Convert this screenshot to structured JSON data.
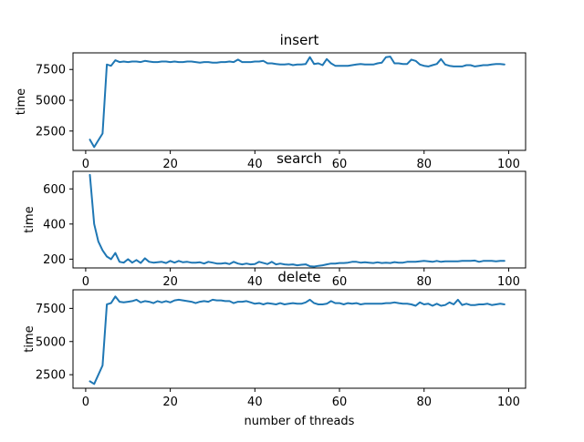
{
  "chart_data": [
    {
      "type": "line",
      "title": "insert",
      "xlabel": "",
      "ylabel": "time",
      "xlim": [
        -3,
        104
      ],
      "ylim": [
        930,
        8850
      ],
      "xticks": [
        0,
        20,
        40,
        60,
        80,
        100
      ],
      "xtick_labels": [
        "0",
        "20",
        "40",
        "60",
        "80",
        "100"
      ],
      "yticks": [
        2500,
        5000,
        7500
      ],
      "ytick_labels": [
        "2500",
        "5000",
        "7500"
      ],
      "grid": false,
      "series": [
        {
          "name": "insert",
          "color": "#1f77b4",
          "x": [
            1,
            2,
            3,
            4,
            5,
            6,
            7,
            8,
            9,
            10,
            11,
            12,
            13,
            14,
            15,
            16,
            17,
            18,
            19,
            20,
            21,
            22,
            23,
            24,
            25,
            26,
            27,
            28,
            29,
            30,
            31,
            32,
            33,
            34,
            35,
            36,
            37,
            38,
            39,
            40,
            41,
            42,
            43,
            44,
            45,
            46,
            47,
            48,
            49,
            50,
            51,
            52,
            53,
            54,
            55,
            56,
            57,
            58,
            59,
            60,
            61,
            62,
            63,
            64,
            65,
            66,
            67,
            68,
            69,
            70,
            71,
            72,
            73,
            74,
            75,
            76,
            77,
            78,
            79,
            80,
            81,
            82,
            83,
            84,
            85,
            86,
            87,
            88,
            89,
            90,
            91,
            92,
            93,
            94,
            95,
            96,
            97,
            98,
            99
          ],
          "values": [
            1800,
            1200,
            1750,
            2300,
            7900,
            7800,
            8250,
            8100,
            8150,
            8100,
            8150,
            8150,
            8100,
            8200,
            8150,
            8100,
            8100,
            8150,
            8150,
            8100,
            8150,
            8100,
            8100,
            8150,
            8150,
            8100,
            8050,
            8100,
            8100,
            8050,
            8050,
            8100,
            8100,
            8150,
            8100,
            8300,
            8100,
            8100,
            8100,
            8150,
            8150,
            8200,
            8000,
            8000,
            7950,
            7900,
            7900,
            7950,
            7850,
            7900,
            7900,
            7950,
            8500,
            7950,
            8000,
            7850,
            8350,
            8000,
            7800,
            7800,
            7800,
            7800,
            7850,
            7900,
            7950,
            7900,
            7900,
            7900,
            8000,
            8050,
            8500,
            8550,
            8000,
            8000,
            7950,
            7950,
            8300,
            8200,
            7900,
            7800,
            7750,
            7850,
            7950,
            8350,
            7900,
            7800,
            7750,
            7750,
            7750,
            7850,
            7850,
            7750,
            7800,
            7850,
            7850,
            7900,
            7950,
            7950,
            7900
          ]
        }
      ]
    },
    {
      "type": "line",
      "title": "search",
      "xlabel": "",
      "ylabel": "time",
      "xlim": [
        -3,
        104
      ],
      "ylim": [
        150,
        700
      ],
      "xticks": [
        0,
        20,
        40,
        60,
        80,
        100
      ],
      "xtick_labels": [
        "0",
        "20",
        "40",
        "60",
        "80",
        "100"
      ],
      "yticks": [
        200,
        400,
        600
      ],
      "ytick_labels": [
        "200",
        "400",
        "600"
      ],
      "grid": false,
      "series": [
        {
          "name": "search",
          "color": "#1f77b4",
          "x": [
            1,
            2,
            3,
            4,
            5,
            6,
            7,
            8,
            9,
            10,
            11,
            12,
            13,
            14,
            15,
            16,
            17,
            18,
            19,
            20,
            21,
            22,
            23,
            24,
            25,
            26,
            27,
            28,
            29,
            30,
            31,
            32,
            33,
            34,
            35,
            36,
            37,
            38,
            39,
            40,
            41,
            42,
            43,
            44,
            45,
            46,
            47,
            48,
            49,
            50,
            51,
            52,
            53,
            54,
            55,
            56,
            57,
            58,
            59,
            60,
            61,
            62,
            63,
            64,
            65,
            66,
            67,
            68,
            69,
            70,
            71,
            72,
            73,
            74,
            75,
            76,
            77,
            78,
            79,
            80,
            81,
            82,
            83,
            84,
            85,
            86,
            87,
            88,
            89,
            90,
            91,
            92,
            93,
            94,
            95,
            96,
            97,
            98,
            99
          ],
          "values": [
            680,
            400,
            300,
            250,
            215,
            200,
            235,
            185,
            180,
            200,
            180,
            195,
            178,
            205,
            185,
            180,
            182,
            185,
            178,
            190,
            180,
            190,
            182,
            185,
            180,
            180,
            182,
            175,
            185,
            180,
            175,
            175,
            178,
            172,
            185,
            175,
            170,
            175,
            170,
            172,
            185,
            178,
            172,
            185,
            170,
            175,
            170,
            168,
            170,
            165,
            168,
            170,
            160,
            158,
            162,
            165,
            170,
            175,
            175,
            178,
            178,
            180,
            185,
            185,
            180,
            182,
            180,
            178,
            182,
            178,
            180,
            178,
            183,
            180,
            180,
            185,
            185,
            185,
            188,
            190,
            188,
            185,
            190,
            185,
            188,
            188,
            188,
            188,
            190,
            190,
            190,
            192,
            185,
            190,
            190,
            190,
            188,
            190,
            190
          ]
        }
      ]
    },
    {
      "type": "line",
      "title": "delete",
      "xlabel": "number of threads",
      "ylabel": "time",
      "xlim": [
        -3,
        104
      ],
      "ylim": [
        1480,
        8900
      ],
      "xticks": [
        0,
        20,
        40,
        60,
        80,
        100
      ],
      "xtick_labels": [
        "0",
        "20",
        "40",
        "60",
        "80",
        "100"
      ],
      "yticks": [
        2500,
        5000,
        7500
      ],
      "ytick_labels": [
        "2500",
        "5000",
        "7500"
      ],
      "grid": false,
      "series": [
        {
          "name": "delete",
          "color": "#1f77b4",
          "x": [
            1,
            2,
            3,
            4,
            5,
            6,
            7,
            8,
            9,
            10,
            11,
            12,
            13,
            14,
            15,
            16,
            17,
            18,
            19,
            20,
            21,
            22,
            23,
            24,
            25,
            26,
            27,
            28,
            29,
            30,
            31,
            32,
            33,
            34,
            35,
            36,
            37,
            38,
            39,
            40,
            41,
            42,
            43,
            44,
            45,
            46,
            47,
            48,
            49,
            50,
            51,
            52,
            53,
            54,
            55,
            56,
            57,
            58,
            59,
            60,
            61,
            62,
            63,
            64,
            65,
            66,
            67,
            68,
            69,
            70,
            71,
            72,
            73,
            74,
            75,
            76,
            77,
            78,
            79,
            80,
            81,
            82,
            83,
            84,
            85,
            86,
            87,
            88,
            89,
            90,
            91,
            92,
            93,
            94,
            95,
            96,
            97,
            98,
            99
          ],
          "values": [
            2000,
            1800,
            2500,
            3200,
            7800,
            7900,
            8400,
            8000,
            7950,
            8000,
            8050,
            8150,
            7950,
            8050,
            8000,
            7900,
            8050,
            7950,
            8050,
            7950,
            8100,
            8150,
            8100,
            8050,
            8000,
            7900,
            8000,
            8050,
            8000,
            8150,
            8100,
            8100,
            8050,
            8050,
            7900,
            8000,
            8000,
            8050,
            7950,
            7850,
            7900,
            7800,
            7900,
            7850,
            7800,
            7900,
            7800,
            7850,
            7900,
            7850,
            7850,
            7950,
            8150,
            7900,
            7800,
            7800,
            7850,
            8050,
            7900,
            7900,
            7800,
            7900,
            7850,
            7900,
            7800,
            7850,
            7850,
            7850,
            7850,
            7850,
            7900,
            7900,
            7950,
            7900,
            7850,
            7850,
            7800,
            7700,
            7950,
            7800,
            7850,
            7700,
            7850,
            7700,
            7750,
            7950,
            7800,
            8150,
            7750,
            7850,
            7750,
            7750,
            7800,
            7800,
            7850,
            7750,
            7800,
            7850,
            7800
          ]
        }
      ]
    }
  ]
}
